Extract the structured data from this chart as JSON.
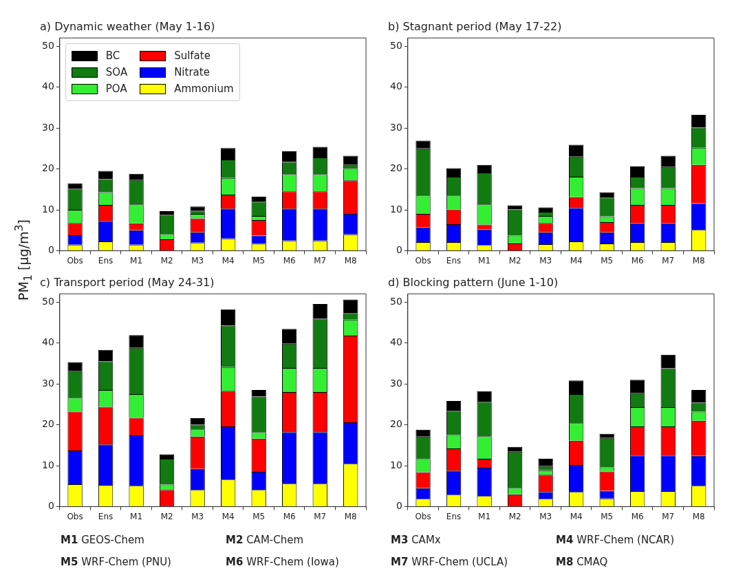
{
  "chart_data": [
    {
      "type": "bar",
      "title": "a) Dynamic weather (May 1-16)",
      "ylabel": "PM$_{1}$ [μg/m$^{3}$]",
      "categories": [
        "Obs",
        "Ens",
        "M1",
        "M2",
        "M3",
        "M4",
        "M5",
        "M6",
        "M7",
        "M8"
      ],
      "stacked": true,
      "ylim": [
        0,
        52
      ],
      "yticks": [
        0,
        10,
        20,
        30,
        40,
        50
      ],
      "grid": false,
      "legend": "top left",
      "series": [
        {
          "name": "Ammonium",
          "color": "#ffff00",
          "values": [
            1.5,
            2.3,
            1.5,
            0,
            2.0,
            3.0,
            1.7,
            2.5,
            2.5,
            4.0
          ]
        },
        {
          "name": "Nitrate",
          "color": "#0000ff",
          "values": [
            2.3,
            5.0,
            3.5,
            0,
            2.5,
            7.3,
            2.0,
            7.8,
            7.8,
            5.0
          ]
        },
        {
          "name": "Sulfate",
          "color": "#ff0000",
          "values": [
            3.0,
            3.9,
            1.7,
            2.8,
            3.4,
            3.4,
            3.8,
            4.2,
            4.2,
            8.2
          ]
        },
        {
          "name": "POA",
          "color": "#33ee33",
          "values": [
            3.2,
            3.1,
            4.6,
            1.3,
            1.1,
            4.1,
            1.0,
            4.2,
            4.2,
            2.8
          ]
        },
        {
          "name": "SOA",
          "color": "#117a11",
          "values": [
            5.2,
            3.2,
            6.0,
            4.7,
            0.8,
            4.5,
            3.5,
            3.0,
            4.1,
            1.0
          ]
        },
        {
          "name": "BC",
          "color": "#000000",
          "values": [
            1.3,
            2.0,
            1.5,
            0.9,
            1.0,
            2.8,
            1.2,
            2.6,
            2.6,
            2.2
          ]
        }
      ]
    },
    {
      "type": "bar",
      "title": "b) Stagnant period (May 17-22)",
      "categories": [
        "Obs",
        "Ens",
        "M1",
        "M2",
        "M3",
        "M4",
        "M5",
        "M6",
        "M7",
        "M8"
      ],
      "stacked": true,
      "ylim": [
        0,
        52
      ],
      "yticks": [
        0,
        10,
        20,
        30,
        40,
        50
      ],
      "grid": false,
      "series": [
        {
          "color": "#ffff00",
          "values": [
            2.1,
            2.1,
            1.4,
            0,
            1.6,
            2.3,
            1.8,
            2.1,
            2.1,
            5.1
          ]
        },
        {
          "color": "#0000ff",
          "values": [
            3.6,
            4.4,
            3.8,
            0,
            2.9,
            8.2,
            2.7,
            4.6,
            4.6,
            6.5
          ]
        },
        {
          "color": "#ff0000",
          "values": [
            3.3,
            3.6,
            1.2,
            1.8,
            2.3,
            2.6,
            2.5,
            4.5,
            4.5,
            9.4
          ]
        },
        {
          "color": "#33ee33",
          "values": [
            4.5,
            3.4,
            4.9,
            1.9,
            1.7,
            5.0,
            1.4,
            4.1,
            4.1,
            4.2
          ]
        },
        {
          "color": "#117a11",
          "values": [
            11.5,
            4.6,
            7.8,
            6.4,
            1.0,
            4.9,
            4.6,
            2.8,
            5.2,
            4.9
          ]
        },
        {
          "color": "#000000",
          "values": [
            1.9,
            2.1,
            1.9,
            1.0,
            1.1,
            2.9,
            1.3,
            2.5,
            2.7,
            3.1
          ]
        }
      ]
    },
    {
      "type": "bar",
      "title": "c) Transport period (May 24-31)",
      "categories": [
        "Obs",
        "Ens",
        "M1",
        "M2",
        "M3",
        "M4",
        "M5",
        "M6",
        "M7",
        "M8"
      ],
      "stacked": true,
      "ylim": [
        0,
        52
      ],
      "yticks": [
        0,
        10,
        20,
        30,
        40,
        50
      ],
      "grid": false,
      "series": [
        {
          "color": "#ffff00",
          "values": [
            5.5,
            5.3,
            5.1,
            0,
            4.1,
            6.6,
            4.1,
            5.6,
            5.6,
            10.5
          ]
        },
        {
          "color": "#0000ff",
          "values": [
            8.2,
            9.9,
            12.3,
            0,
            5.1,
            13.0,
            4.4,
            12.6,
            12.6,
            10.1
          ]
        },
        {
          "color": "#ff0000",
          "values": [
            9.5,
            9.2,
            4.3,
            4.1,
            7.9,
            8.7,
            8.1,
            9.8,
            9.8,
            21.2
          ]
        },
        {
          "color": "#33ee33",
          "values": [
            3.4,
            4.1,
            5.8,
            1.3,
            1.8,
            5.8,
            1.6,
            5.9,
            5.9,
            3.9
          ]
        },
        {
          "color": "#117a11",
          "values": [
            6.5,
            7.0,
            11.3,
            6.3,
            1.1,
            10.1,
            8.7,
            5.9,
            12.0,
            1.6
          ]
        },
        {
          "color": "#000000",
          "values": [
            2.2,
            2.8,
            3.1,
            1.1,
            1.6,
            4.0,
            1.6,
            3.6,
            3.6,
            3.3
          ]
        }
      ]
    },
    {
      "type": "bar",
      "title": "d) Blocking pattern (June 1-10)",
      "categories": [
        "Obs",
        "Ens",
        "M1",
        "M2",
        "M3",
        "M4",
        "M5",
        "M6",
        "M7",
        "M8"
      ],
      "stacked": true,
      "ylim": [
        0,
        52
      ],
      "yticks": [
        0,
        10,
        20,
        30,
        40,
        50
      ],
      "grid": false,
      "annotations": [
        "M1 GEOS-Chem",
        "M2 CAM-Chem",
        "M3 CAMx",
        "M4 WRF-Chem (NCAR)",
        "M5 WRF-Chem (PNU)",
        "M6 WRF-Chem (Iowa)",
        "M7 WRF-Chem (UCLA)",
        "M8 CMAQ"
      ],
      "series": [
        {
          "color": "#ffff00",
          "values": [
            1.9,
            2.9,
            2.6,
            0,
            1.9,
            3.6,
            2.0,
            3.8,
            3.8,
            5.1
          ]
        },
        {
          "color": "#0000ff",
          "values": [
            2.6,
            5.9,
            6.9,
            0,
            1.7,
            6.6,
            1.9,
            8.7,
            8.7,
            7.3
          ]
        },
        {
          "color": "#ff0000",
          "values": [
            3.9,
            5.4,
            2.2,
            3.0,
            4.2,
            5.9,
            4.7,
            7.1,
            7.1,
            8.6
          ]
        },
        {
          "color": "#33ee33",
          "values": [
            3.2,
            3.3,
            5.5,
            1.6,
            1.1,
            4.3,
            1.0,
            4.7,
            4.7,
            2.2
          ]
        },
        {
          "color": "#117a11",
          "values": [
            5.5,
            5.9,
            8.4,
            8.8,
            1.0,
            7.1,
            7.2,
            3.4,
            9.5,
            2.2
          ]
        },
        {
          "color": "#000000",
          "values": [
            1.7,
            2.4,
            2.6,
            1.2,
            1.8,
            3.3,
            1.0,
            3.3,
            3.3,
            3.1
          ]
        }
      ]
    }
  ]
}
